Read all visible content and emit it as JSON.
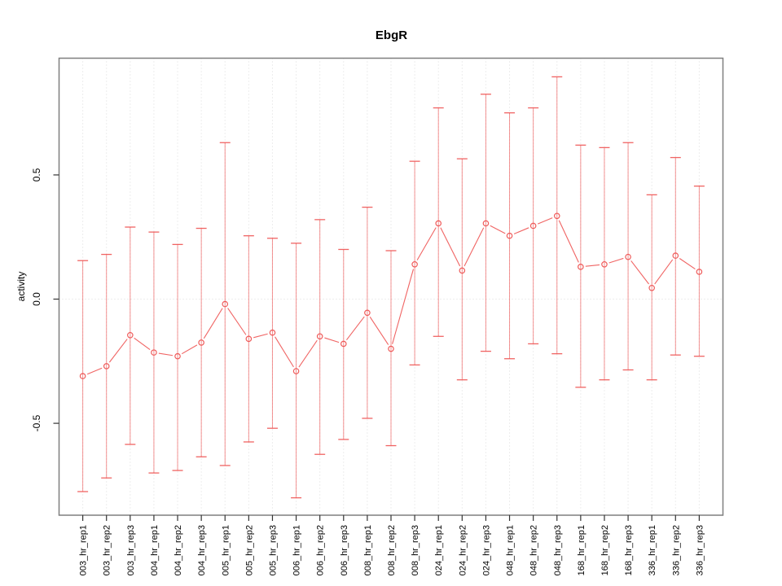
{
  "chart_data": {
    "type": "line",
    "marker": "open-circle",
    "error_bars": true,
    "title": "EbgR",
    "xlabel": "",
    "ylabel": "activity",
    "legend": "none",
    "categories": [
      "003_hr_rep1",
      "003_hr_rep2",
      "003_hr_rep3",
      "004_hr_rep1",
      "004_hr_rep2",
      "004_hr_rep3",
      "005_hr_rep1",
      "005_hr_rep2",
      "005_hr_rep3",
      "006_hr_rep1",
      "006_hr_rep2",
      "006_hr_rep3",
      "008_hr_rep1",
      "008_hr_rep2",
      "008_hr_rep3",
      "024_hr_rep1",
      "024_hr_rep2",
      "024_hr_rep3",
      "048_hr_rep1",
      "048_hr_rep2",
      "048_hr_rep3",
      "168_hr_rep1",
      "168_hr_rep2",
      "168_hr_rep3",
      "336_hr_rep1",
      "336_hr_rep2",
      "336_hr_rep3"
    ],
    "series": [
      {
        "name": "activity_mean",
        "values": [
          -0.31,
          -0.27,
          -0.145,
          -0.215,
          -0.23,
          -0.175,
          -0.02,
          -0.16,
          -0.135,
          -0.29,
          -0.15,
          -0.18,
          -0.055,
          -0.2,
          0.14,
          0.305,
          0.115,
          0.305,
          0.255,
          0.295,
          0.335,
          0.13,
          0.14,
          0.17,
          0.045,
          0.175,
          0.11
        ]
      },
      {
        "name": "error_upper",
        "values": [
          0.155,
          0.18,
          0.29,
          0.27,
          0.22,
          0.285,
          0.63,
          0.255,
          0.245,
          0.225,
          0.32,
          0.2,
          0.37,
          0.195,
          0.555,
          0.77,
          0.565,
          0.825,
          0.75,
          0.77,
          0.895,
          0.62,
          0.61,
          0.63,
          0.42,
          0.57,
          0.455
        ]
      },
      {
        "name": "error_lower",
        "values": [
          -0.775,
          -0.72,
          -0.585,
          -0.7,
          -0.69,
          -0.635,
          -0.67,
          -0.575,
          -0.52,
          -0.8,
          -0.625,
          -0.565,
          -0.48,
          -0.59,
          -0.265,
          -0.15,
          -0.325,
          -0.21,
          -0.24,
          -0.18,
          -0.22,
          -0.355,
          -0.325,
          -0.285,
          -0.325,
          -0.225,
          -0.23
        ]
      }
    ],
    "ylim": [
      -0.87,
      0.97
    ],
    "yticks": [
      -0.5,
      0,
      0.5
    ],
    "ytick_labels": [
      "-0.5",
      "0.0",
      "0.5"
    ],
    "grid": {
      "vertical_dotted_per_category": true,
      "horizontal_dotted_at_zero": true
    },
    "colors": {
      "series": "#ee5352",
      "grid": "#dcdcdc",
      "frame": "#7f7f7f",
      "tick": "#333333",
      "text": "#000000",
      "background": "#ffffff"
    }
  }
}
